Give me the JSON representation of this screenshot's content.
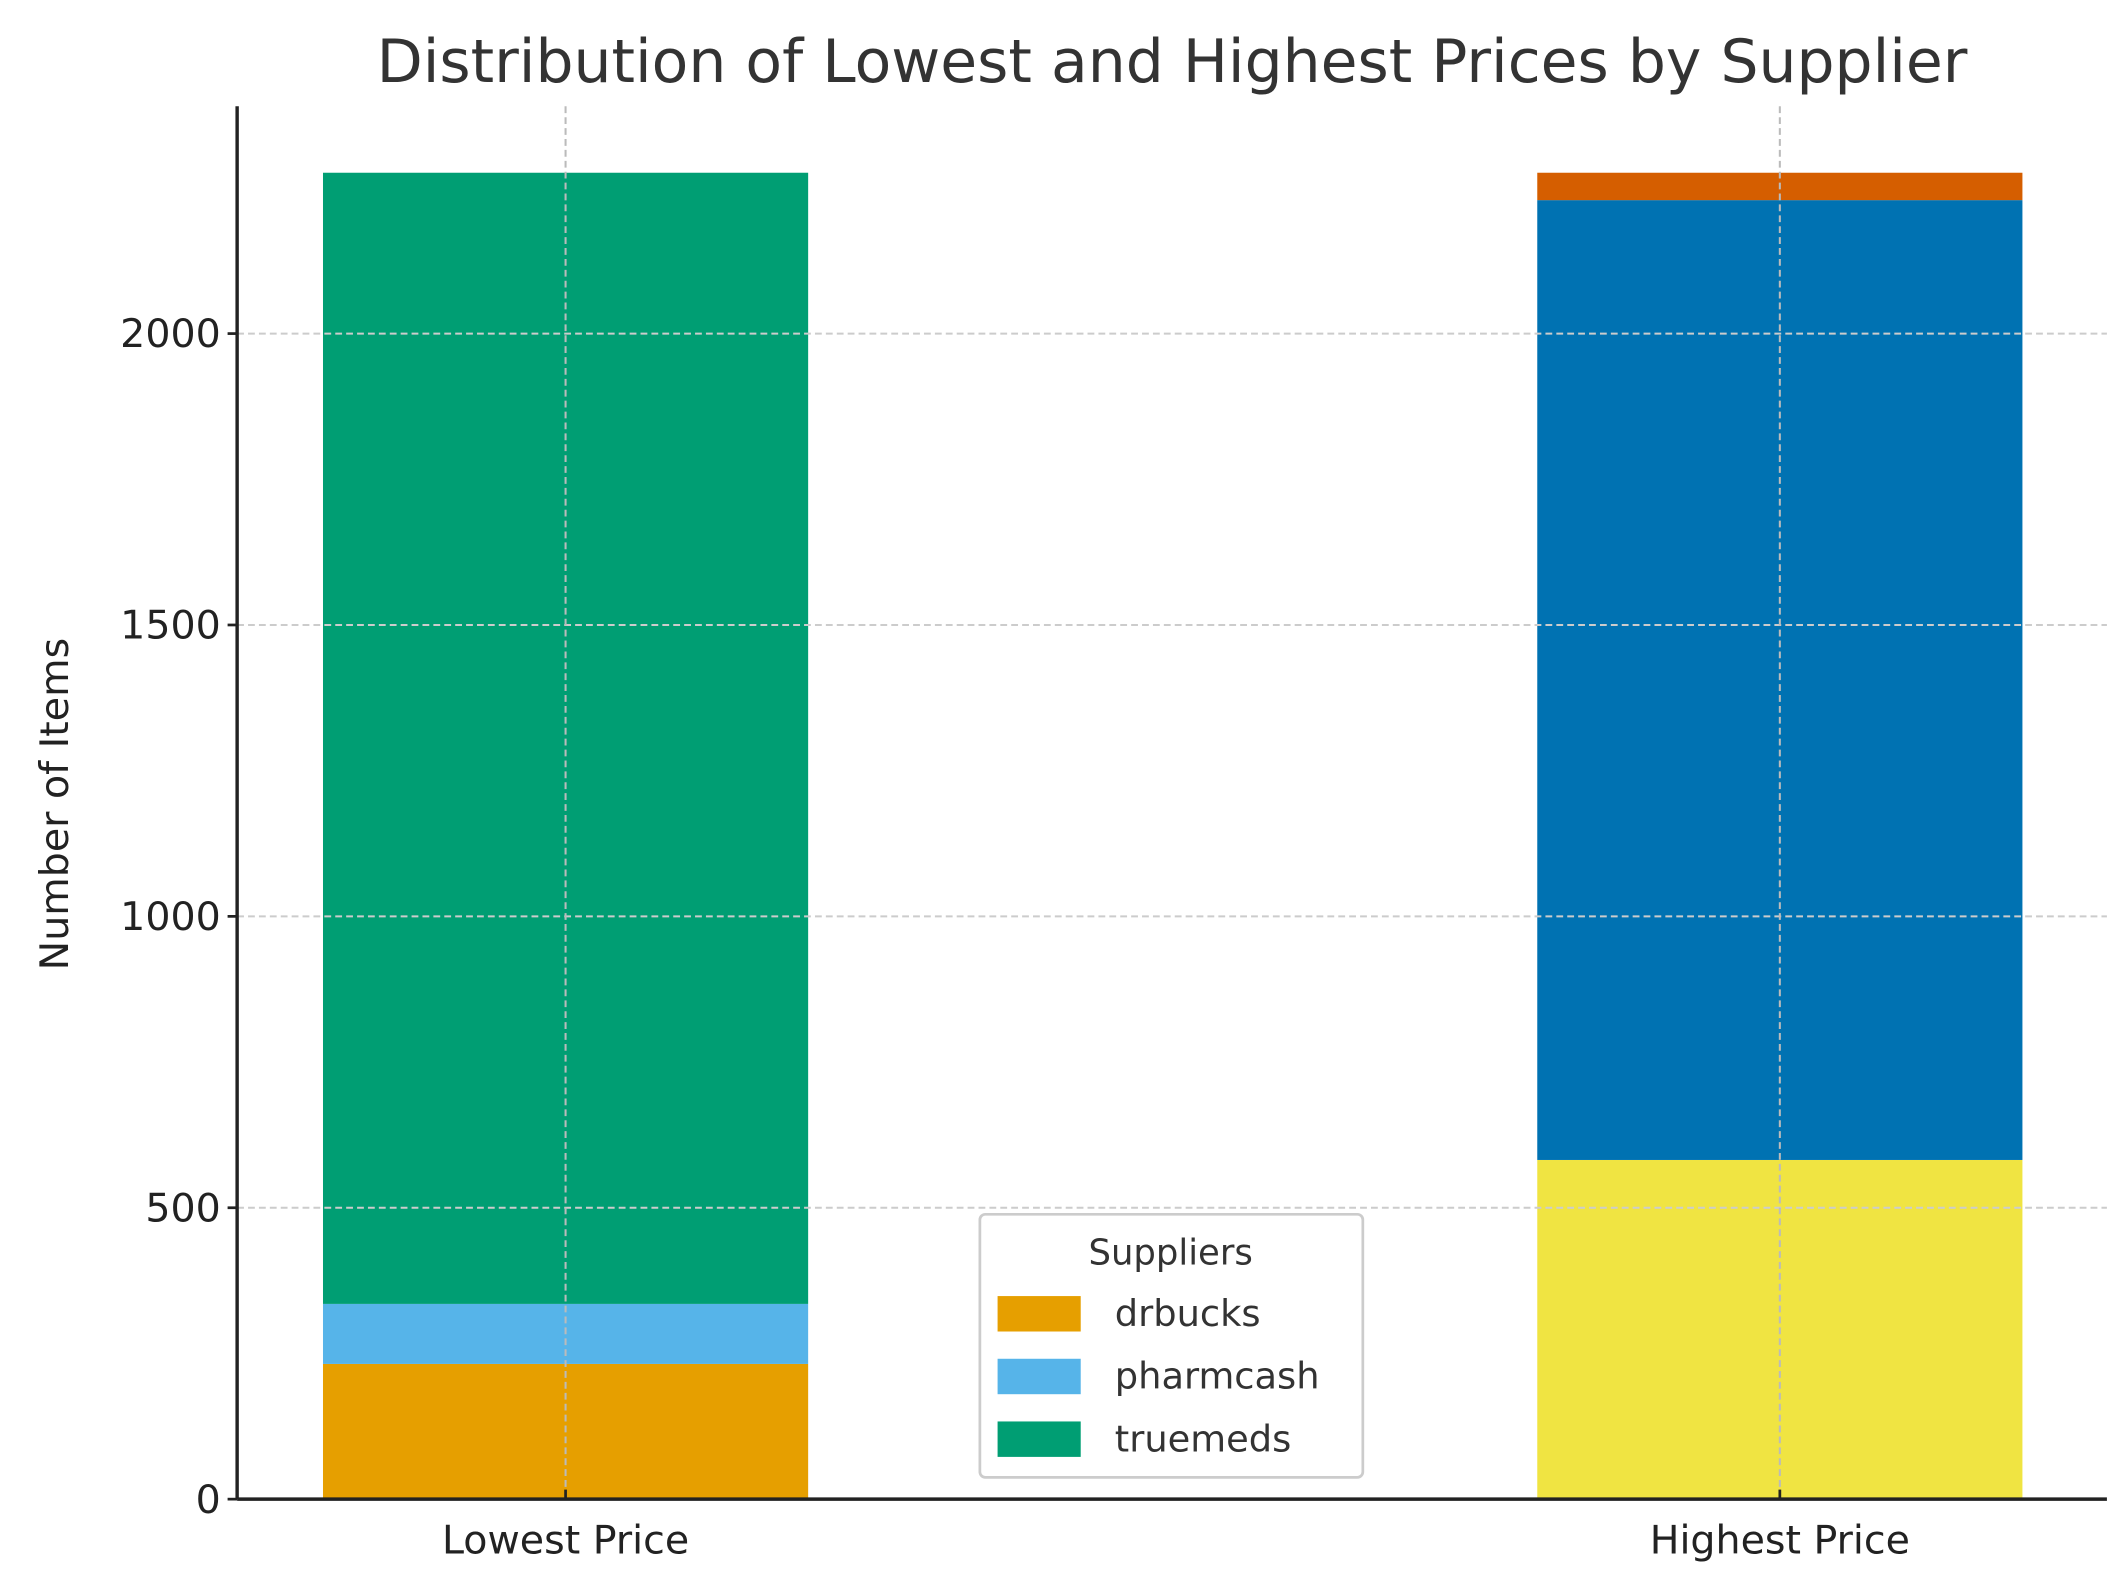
{
  "chart_data": {
    "type": "bar",
    "stacked": true,
    "title": "Distribution of Lowest and Highest Prices by Supplier",
    "xlabel": "",
    "ylabel": "Number of Items",
    "categories": [
      "Lowest Price",
      "Highest Price"
    ],
    "ylim": [
      0,
      2390
    ],
    "yticks": [
      0,
      500,
      1000,
      1500,
      2000
    ],
    "grid": true,
    "legend": {
      "title": "Suppliers",
      "placement": "bottom-center"
    },
    "series": [
      {
        "name": "drbucks",
        "color": "#E69F00",
        "values": [
          232,
          0
        ]
      },
      {
        "name": "pharmcash",
        "color": "#56B4E9",
        "values": [
          103,
          0
        ]
      },
      {
        "name": "truemeds",
        "color": "#009E73",
        "values": [
          1941,
          0
        ]
      },
      {
        "color": "#F0E442",
        "values": [
          0,
          582
        ]
      },
      {
        "color": "#0072B2",
        "values": [
          0,
          1647
        ]
      },
      {
        "color": "#D55E00",
        "values": [
          0,
          47
        ]
      }
    ]
  }
}
